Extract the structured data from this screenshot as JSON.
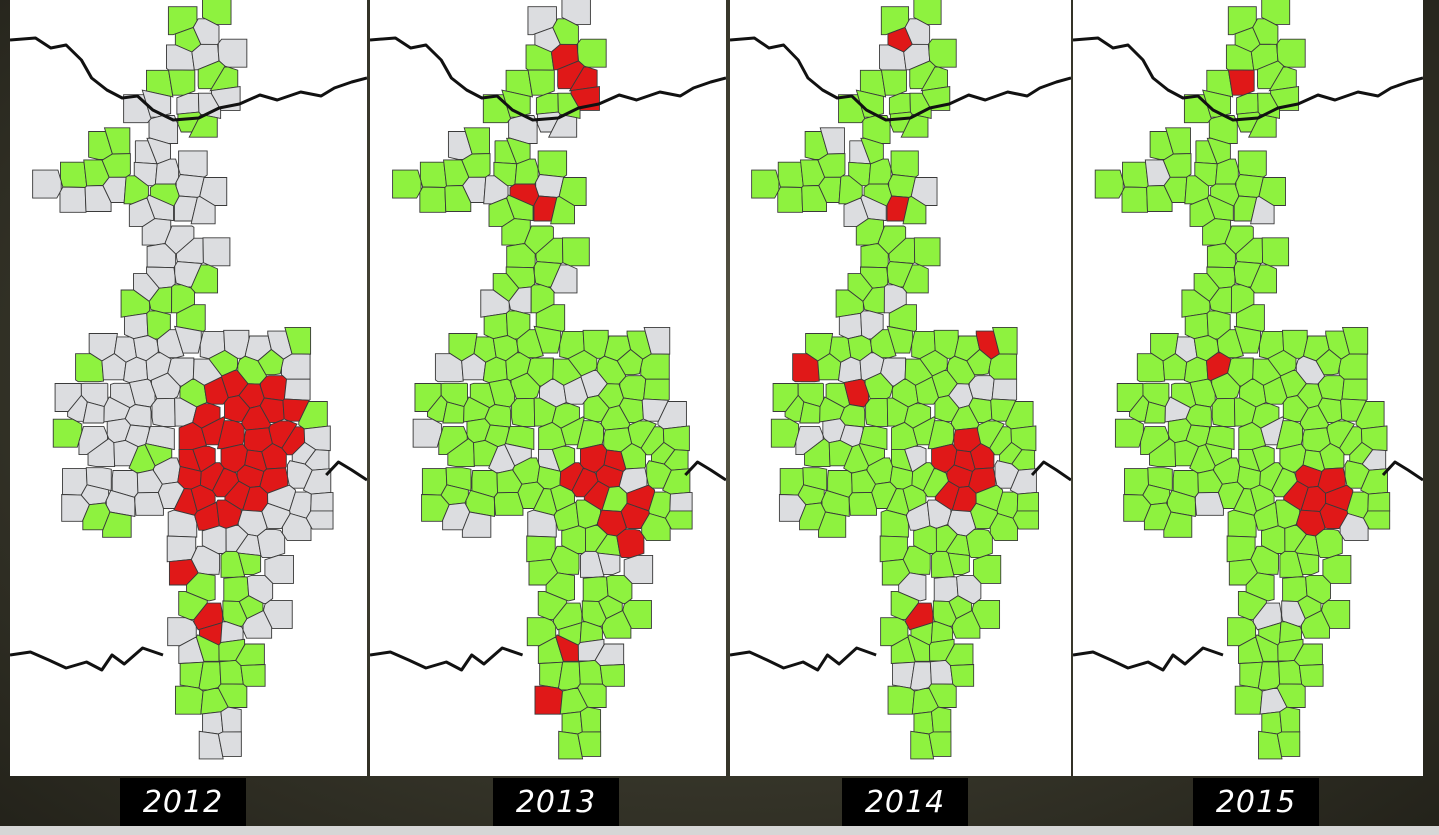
{
  "legend_colors": {
    "grey": "#dcdde0",
    "green": "#8ef23f",
    "red": "#e01818"
  },
  "panels": [
    {
      "year": "2012"
    },
    {
      "year": "2013"
    },
    {
      "year": "2014"
    },
    {
      "year": "2015"
    }
  ]
}
